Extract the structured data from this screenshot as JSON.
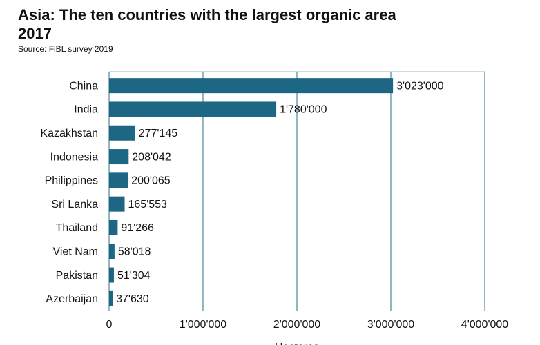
{
  "chart_data": {
    "type": "hbar",
    "title": "Asia: The ten countries with the largest organic area\n2017",
    "subtitle": "Source: FiBL survey 2019",
    "x_label": "Hectares",
    "categories": [
      "China",
      "India",
      "Kazakhstan",
      "Indonesia",
      "Philippines",
      "Sri Lanka",
      "Thailand",
      "Viet Nam",
      "Pakistan",
      "Azerbaijan"
    ],
    "values": [
      3023000,
      1780000,
      277145,
      208042,
      200065,
      165553,
      91266,
      58018,
      51304,
      37630
    ],
    "value_labels": [
      "3'023'000",
      "1'780'000",
      "277'145",
      "208'042",
      "200'065",
      "165'553",
      "91'266",
      "58'018",
      "51'304",
      "37'630"
    ],
    "color": "#1e6784",
    "xlim": [
      0,
      4000000
    ],
    "xticks": [
      0,
      {
        "value": 1000000,
        "label": "1'000'000"
      },
      {
        "value": 2000000,
        "label": "2'000'000"
      },
      {
        "value": 3000000,
        "label": "3'000'000"
      },
      {
        "value": 4000000,
        "label": "4'000'000"
      }
    ],
    "grid": true
  }
}
